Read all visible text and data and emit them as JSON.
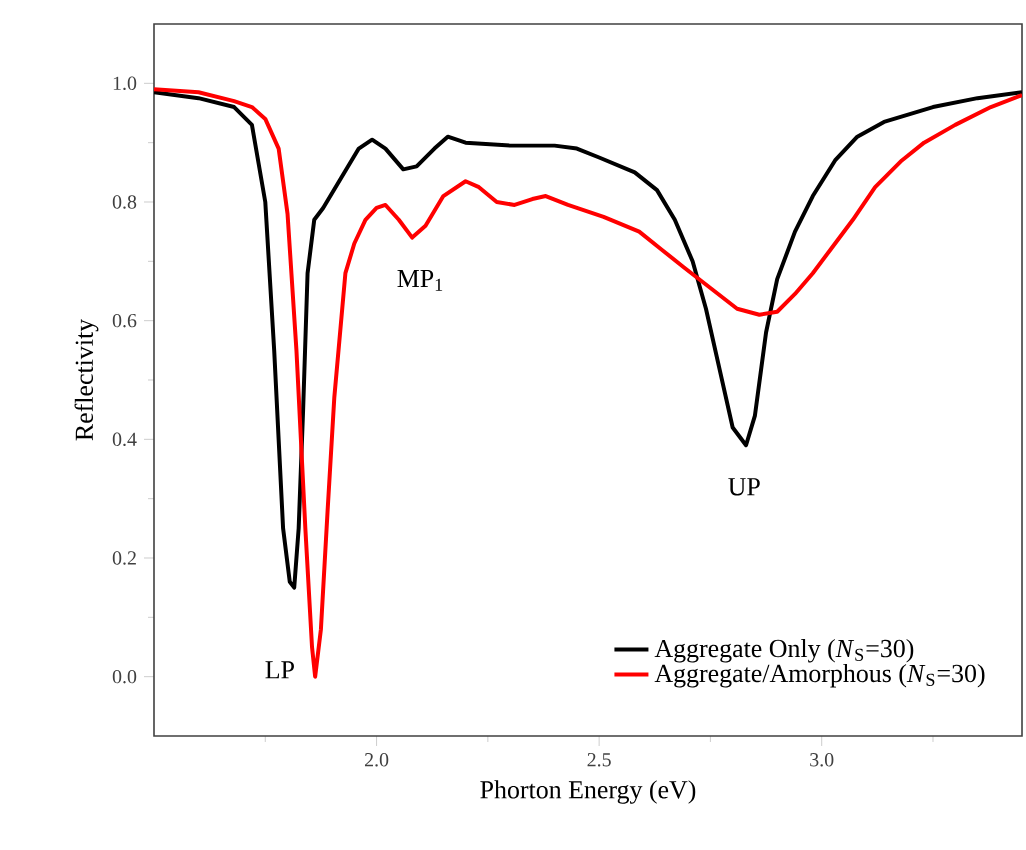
{
  "chart_data": {
    "type": "line",
    "xlabel": "Phorton Energy (eV)",
    "ylabel": "Reflectivity",
    "xlim": [
      1.5,
      3.45
    ],
    "ylim": [
      -0.1,
      1.1
    ],
    "xticks": [
      {
        "value": 1.75,
        "label": null
      },
      {
        "value": 2.0,
        "label": "2.0"
      },
      {
        "value": 2.25,
        "label": null
      },
      {
        "value": 2.5,
        "label": "2.5"
      },
      {
        "value": 2.75,
        "label": null
      },
      {
        "value": 3.0,
        "label": "3.0"
      },
      {
        "value": 3.25,
        "label": null
      }
    ],
    "yticks": [
      {
        "value": 0.0,
        "label": "0.0"
      },
      {
        "value": 0.1,
        "label": null
      },
      {
        "value": 0.2,
        "label": "0.2"
      },
      {
        "value": 0.3,
        "label": null
      },
      {
        "value": 0.4,
        "label": "0.4"
      },
      {
        "value": 0.5,
        "label": null
      },
      {
        "value": 0.6,
        "label": "0.6"
      },
      {
        "value": 0.7,
        "label": null
      },
      {
        "value": 0.8,
        "label": "0.8"
      },
      {
        "value": 0.9,
        "label": null
      },
      {
        "value": 1.0,
        "label": "1.0"
      }
    ],
    "legend": "bottom right",
    "grid": false,
    "marker": "none",
    "line_style": "solid",
    "annotations": [
      "LP",
      "MP$_{1}$",
      "UP"
    ],
    "series": [
      {
        "name": "Aggregate Only (*N*$_{S}$=30)",
        "color": "#000000",
        "x": [
          1.5,
          1.6,
          1.68,
          1.72,
          1.75,
          1.77,
          1.79,
          1.805,
          1.815,
          1.825,
          1.835,
          1.845,
          1.86,
          1.88,
          1.92,
          1.96,
          1.99,
          2.02,
          2.06,
          2.09,
          2.13,
          2.16,
          2.2,
          2.3,
          2.4,
          2.45,
          2.5,
          2.58,
          2.63,
          2.67,
          2.71,
          2.74,
          2.77,
          2.8,
          2.83,
          2.85,
          2.875,
          2.9,
          2.94,
          2.98,
          3.03,
          3.08,
          3.14,
          3.25,
          3.35,
          3.45
        ],
        "values": [
          0.985,
          0.975,
          0.96,
          0.93,
          0.8,
          0.55,
          0.25,
          0.16,
          0.15,
          0.25,
          0.45,
          0.68,
          0.77,
          0.79,
          0.84,
          0.89,
          0.905,
          0.89,
          0.855,
          0.86,
          0.89,
          0.91,
          0.9,
          0.895,
          0.895,
          0.89,
          0.875,
          0.85,
          0.82,
          0.77,
          0.7,
          0.62,
          0.52,
          0.42,
          0.39,
          0.44,
          0.58,
          0.67,
          0.75,
          0.81,
          0.87,
          0.91,
          0.935,
          0.96,
          0.975,
          0.985
        ]
      },
      {
        "name": "Aggregate/Amorphous (*N*$_{S}$=30)",
        "color": "#ff0000",
        "x": [
          1.5,
          1.6,
          1.68,
          1.72,
          1.75,
          1.78,
          1.8,
          1.82,
          1.84,
          1.855,
          1.862,
          1.875,
          1.89,
          1.905,
          1.93,
          1.95,
          1.975,
          2.0,
          2.02,
          2.05,
          2.08,
          2.11,
          2.15,
          2.2,
          2.23,
          2.27,
          2.31,
          2.35,
          2.38,
          2.43,
          2.51,
          2.59,
          2.64,
          2.69,
          2.75,
          2.81,
          2.86,
          2.9,
          2.94,
          2.98,
          3.02,
          3.07,
          3.12,
          3.18,
          3.23,
          3.3,
          3.38,
          3.45
        ],
        "values": [
          0.99,
          0.985,
          0.97,
          0.96,
          0.94,
          0.89,
          0.78,
          0.55,
          0.25,
          0.05,
          0.0,
          0.08,
          0.28,
          0.47,
          0.68,
          0.73,
          0.77,
          0.79,
          0.795,
          0.77,
          0.74,
          0.76,
          0.81,
          0.835,
          0.825,
          0.8,
          0.795,
          0.805,
          0.81,
          0.795,
          0.775,
          0.75,
          0.72,
          0.69,
          0.655,
          0.62,
          0.61,
          0.615,
          0.645,
          0.68,
          0.72,
          0.77,
          0.825,
          0.87,
          0.9,
          0.93,
          0.96,
          0.98
        ]
      }
    ]
  }
}
